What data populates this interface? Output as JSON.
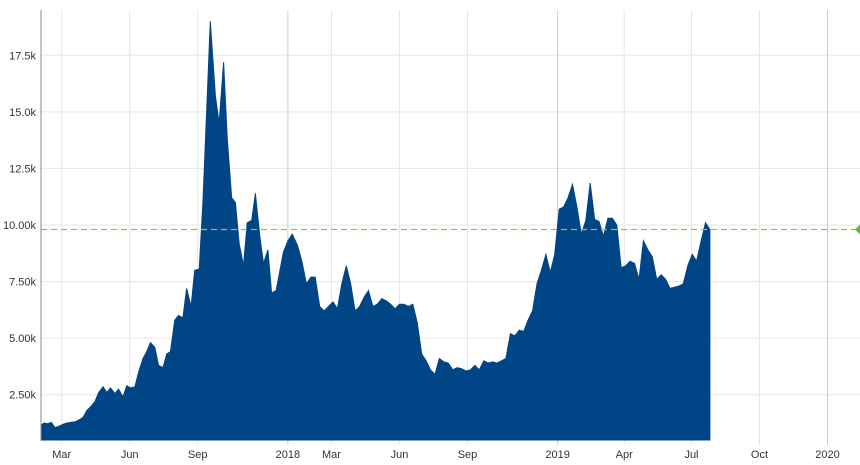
{
  "chart_data": {
    "type": "area",
    "title": "",
    "xlabel": "",
    "ylabel": "",
    "x_range": [
      "2017-02-01",
      "2020-02-14"
    ],
    "ylim": [
      500,
      19500
    ],
    "grid": true,
    "colors": {
      "area": "#004687",
      "reference_line": "#8dc63f",
      "marker": "#6cb33f",
      "grid": "#e6e6e6",
      "year_line": "#cccccc"
    },
    "y_ticks": [
      {
        "value": 2500,
        "label": "2.50k"
      },
      {
        "value": 5000,
        "label": "5.00k"
      },
      {
        "value": 7500,
        "label": "7.50k"
      },
      {
        "value": 10000,
        "label": "10.00k"
      },
      {
        "value": 12500,
        "label": "12.5k"
      },
      {
        "value": 15000,
        "label": "15.0k"
      },
      {
        "value": 17500,
        "label": "17.5k"
      }
    ],
    "x_ticks": [
      {
        "date": "2017-03-01",
        "label": "Mar",
        "year": false
      },
      {
        "date": "2017-06-01",
        "label": "Jun",
        "year": false
      },
      {
        "date": "2017-09-01",
        "label": "Sep",
        "year": false
      },
      {
        "date": "2018-01-01",
        "label": "2018",
        "year": true
      },
      {
        "date": "2018-03-01",
        "label": "Mar",
        "year": false
      },
      {
        "date": "2018-06-01",
        "label": "Jun",
        "year": false
      },
      {
        "date": "2018-09-01",
        "label": "Sep",
        "year": false
      },
      {
        "date": "2019-01-01",
        "label": "2019",
        "year": true
      },
      {
        "date": "2019-04-01",
        "label": "Apr",
        "year": false
      },
      {
        "date": "2019-07-01",
        "label": "Jul",
        "year": false
      },
      {
        "date": "2019-10-01",
        "label": "Oct",
        "year": false
      },
      {
        "date": "2020-01-01",
        "label": "2020",
        "year": true
      }
    ],
    "reference_value": 9800,
    "last_point": {
      "date": "2020-02-14",
      "value": 9800
    },
    "series": [
      {
        "points": [
          [
            "2017-02-01",
            1150
          ],
          [
            "2017-02-05",
            1250
          ],
          [
            "2017-02-10",
            1220
          ],
          [
            "2017-02-15",
            1280
          ],
          [
            "2017-02-20",
            1050
          ],
          [
            "2017-02-25",
            1100
          ],
          [
            "2017-03-03",
            1200
          ],
          [
            "2017-03-08",
            1250
          ],
          [
            "2017-03-14",
            1280
          ],
          [
            "2017-03-19",
            1300
          ],
          [
            "2017-03-24",
            1380
          ],
          [
            "2017-03-30",
            1500
          ],
          [
            "2017-04-04",
            1800
          ],
          [
            "2017-04-10",
            2000
          ],
          [
            "2017-04-15",
            2200
          ],
          [
            "2017-04-20",
            2600
          ],
          [
            "2017-04-26",
            2850
          ],
          [
            "2017-05-01",
            2600
          ],
          [
            "2017-05-06",
            2800
          ],
          [
            "2017-05-12",
            2550
          ],
          [
            "2017-05-17",
            2750
          ],
          [
            "2017-05-23",
            2400
          ],
          [
            "2017-05-28",
            2900
          ],
          [
            "2017-06-02",
            2800
          ],
          [
            "2017-06-08",
            2850
          ],
          [
            "2017-06-13",
            3500
          ],
          [
            "2017-06-19",
            4100
          ],
          [
            "2017-06-24",
            4400
          ],
          [
            "2017-06-29",
            4800
          ],
          [
            "2017-07-05",
            4600
          ],
          [
            "2017-07-10",
            3800
          ],
          [
            "2017-07-16",
            3700
          ],
          [
            "2017-07-21",
            4300
          ],
          [
            "2017-07-26",
            4400
          ],
          [
            "2017-08-01",
            5800
          ],
          [
            "2017-08-06",
            6000
          ],
          [
            "2017-08-12",
            5900
          ],
          [
            "2017-08-17",
            7200
          ],
          [
            "2017-08-23",
            6400
          ],
          [
            "2017-08-28",
            8000
          ],
          [
            "2017-09-03",
            8050
          ],
          [
            "2017-09-08",
            11000
          ],
          [
            "2017-09-18",
            19000
          ],
          [
            "2017-09-25",
            15700
          ],
          [
            "2017-09-30",
            14500
          ],
          [
            "2017-10-06",
            17200
          ],
          [
            "2017-10-11",
            13800
          ],
          [
            "2017-10-17",
            11200
          ],
          [
            "2017-10-22",
            11000
          ],
          [
            "2017-10-27",
            9200
          ],
          [
            "2017-11-02",
            8200
          ],
          [
            "2017-11-07",
            10100
          ],
          [
            "2017-11-13",
            10200
          ],
          [
            "2017-11-18",
            11400
          ],
          [
            "2017-11-24",
            9500
          ],
          [
            "2017-11-29",
            8300
          ],
          [
            "2017-12-05",
            8900
          ],
          [
            "2017-12-10",
            7000
          ],
          [
            "2017-12-16",
            7100
          ],
          [
            "2017-12-26",
            8800
          ],
          [
            "2018-01-01",
            9300
          ],
          [
            "2018-01-07",
            9600
          ],
          [
            "2018-01-14",
            9100
          ],
          [
            "2018-01-20",
            8400
          ],
          [
            "2018-01-26",
            7400
          ],
          [
            "2018-02-01",
            7700
          ],
          [
            "2018-02-07",
            7700
          ],
          [
            "2018-02-13",
            6400
          ],
          [
            "2018-02-19",
            6200
          ],
          [
            "2018-02-25",
            6400
          ],
          [
            "2018-03-03",
            6600
          ],
          [
            "2018-03-09",
            6300
          ],
          [
            "2018-03-15",
            7400
          ],
          [
            "2018-03-21",
            8200
          ],
          [
            "2018-03-27",
            7400
          ],
          [
            "2018-04-02",
            6200
          ],
          [
            "2018-04-08",
            6400
          ],
          [
            "2018-04-14",
            6800
          ],
          [
            "2018-04-20",
            7100
          ],
          [
            "2018-04-26",
            6400
          ],
          [
            "2018-05-02",
            6500
          ],
          [
            "2018-05-08",
            6750
          ],
          [
            "2018-05-14",
            6650
          ],
          [
            "2018-05-20",
            6500
          ],
          [
            "2018-05-26",
            6300
          ],
          [
            "2018-06-01",
            6500
          ],
          [
            "2018-06-07",
            6500
          ],
          [
            "2018-06-13",
            6400
          ],
          [
            "2018-06-19",
            6500
          ],
          [
            "2018-06-25",
            5700
          ],
          [
            "2018-07-01",
            4300
          ],
          [
            "2018-07-07",
            4000
          ],
          [
            "2018-07-13",
            3600
          ],
          [
            "2018-07-19",
            3400
          ],
          [
            "2018-07-25",
            4100
          ],
          [
            "2018-07-31",
            3950
          ],
          [
            "2018-08-06",
            3900
          ],
          [
            "2018-08-12",
            3600
          ],
          [
            "2018-08-18",
            3700
          ],
          [
            "2018-08-24",
            3650
          ],
          [
            "2018-08-30",
            3550
          ],
          [
            "2018-09-05",
            3600
          ],
          [
            "2018-09-11",
            3800
          ],
          [
            "2018-09-17",
            3600
          ],
          [
            "2018-09-23",
            4000
          ],
          [
            "2018-09-29",
            3900
          ],
          [
            "2018-10-05",
            3950
          ],
          [
            "2018-10-11",
            3900
          ],
          [
            "2018-10-17",
            4000
          ],
          [
            "2018-10-23",
            4100
          ],
          [
            "2018-10-29",
            5200
          ],
          [
            "2018-11-04",
            5100
          ],
          [
            "2018-11-10",
            5350
          ],
          [
            "2018-11-16",
            5300
          ],
          [
            "2018-11-22",
            5800
          ],
          [
            "2018-11-28",
            6200
          ],
          [
            "2018-12-04",
            7400
          ],
          [
            "2018-12-10",
            8000
          ],
          [
            "2018-12-16",
            8700
          ],
          [
            "2018-12-22",
            7900
          ],
          [
            "2018-12-28",
            8700
          ],
          [
            "2019-01-03",
            10700
          ],
          [
            "2019-01-09",
            10800
          ],
          [
            "2019-01-15",
            11200
          ],
          [
            "2019-01-21",
            11800
          ],
          [
            "2019-01-27",
            10800
          ],
          [
            "2019-02-02",
            9600
          ],
          [
            "2019-02-08",
            10200
          ],
          [
            "2019-02-14",
            11850
          ],
          [
            "2019-02-20",
            10250
          ],
          [
            "2019-02-26",
            10150
          ],
          [
            "2019-03-04",
            9500
          ],
          [
            "2019-03-10",
            10300
          ],
          [
            "2019-03-16",
            10300
          ],
          [
            "2019-03-22",
            10000
          ],
          [
            "2019-03-28",
            8100
          ],
          [
            "2019-04-03",
            8200
          ],
          [
            "2019-04-09",
            8400
          ],
          [
            "2019-04-15",
            8300
          ],
          [
            "2019-04-21",
            7600
          ],
          [
            "2019-04-27",
            9300
          ],
          [
            "2019-05-03",
            8900
          ],
          [
            "2019-05-09",
            8600
          ],
          [
            "2019-05-15",
            7600
          ],
          [
            "2019-05-21",
            7800
          ],
          [
            "2019-05-27",
            7600
          ],
          [
            "2019-06-02",
            7200
          ],
          [
            "2019-06-08",
            7250
          ],
          [
            "2019-06-14",
            7300
          ],
          [
            "2019-06-20",
            7400
          ],
          [
            "2019-06-26",
            8200
          ],
          [
            "2019-07-02",
            8700
          ],
          [
            "2019-07-08",
            8400
          ],
          [
            "2019-07-14",
            9300
          ],
          [
            "2019-07-20",
            10100
          ],
          [
            "2019-07-26",
            9800
          ]
        ]
      }
    ]
  }
}
